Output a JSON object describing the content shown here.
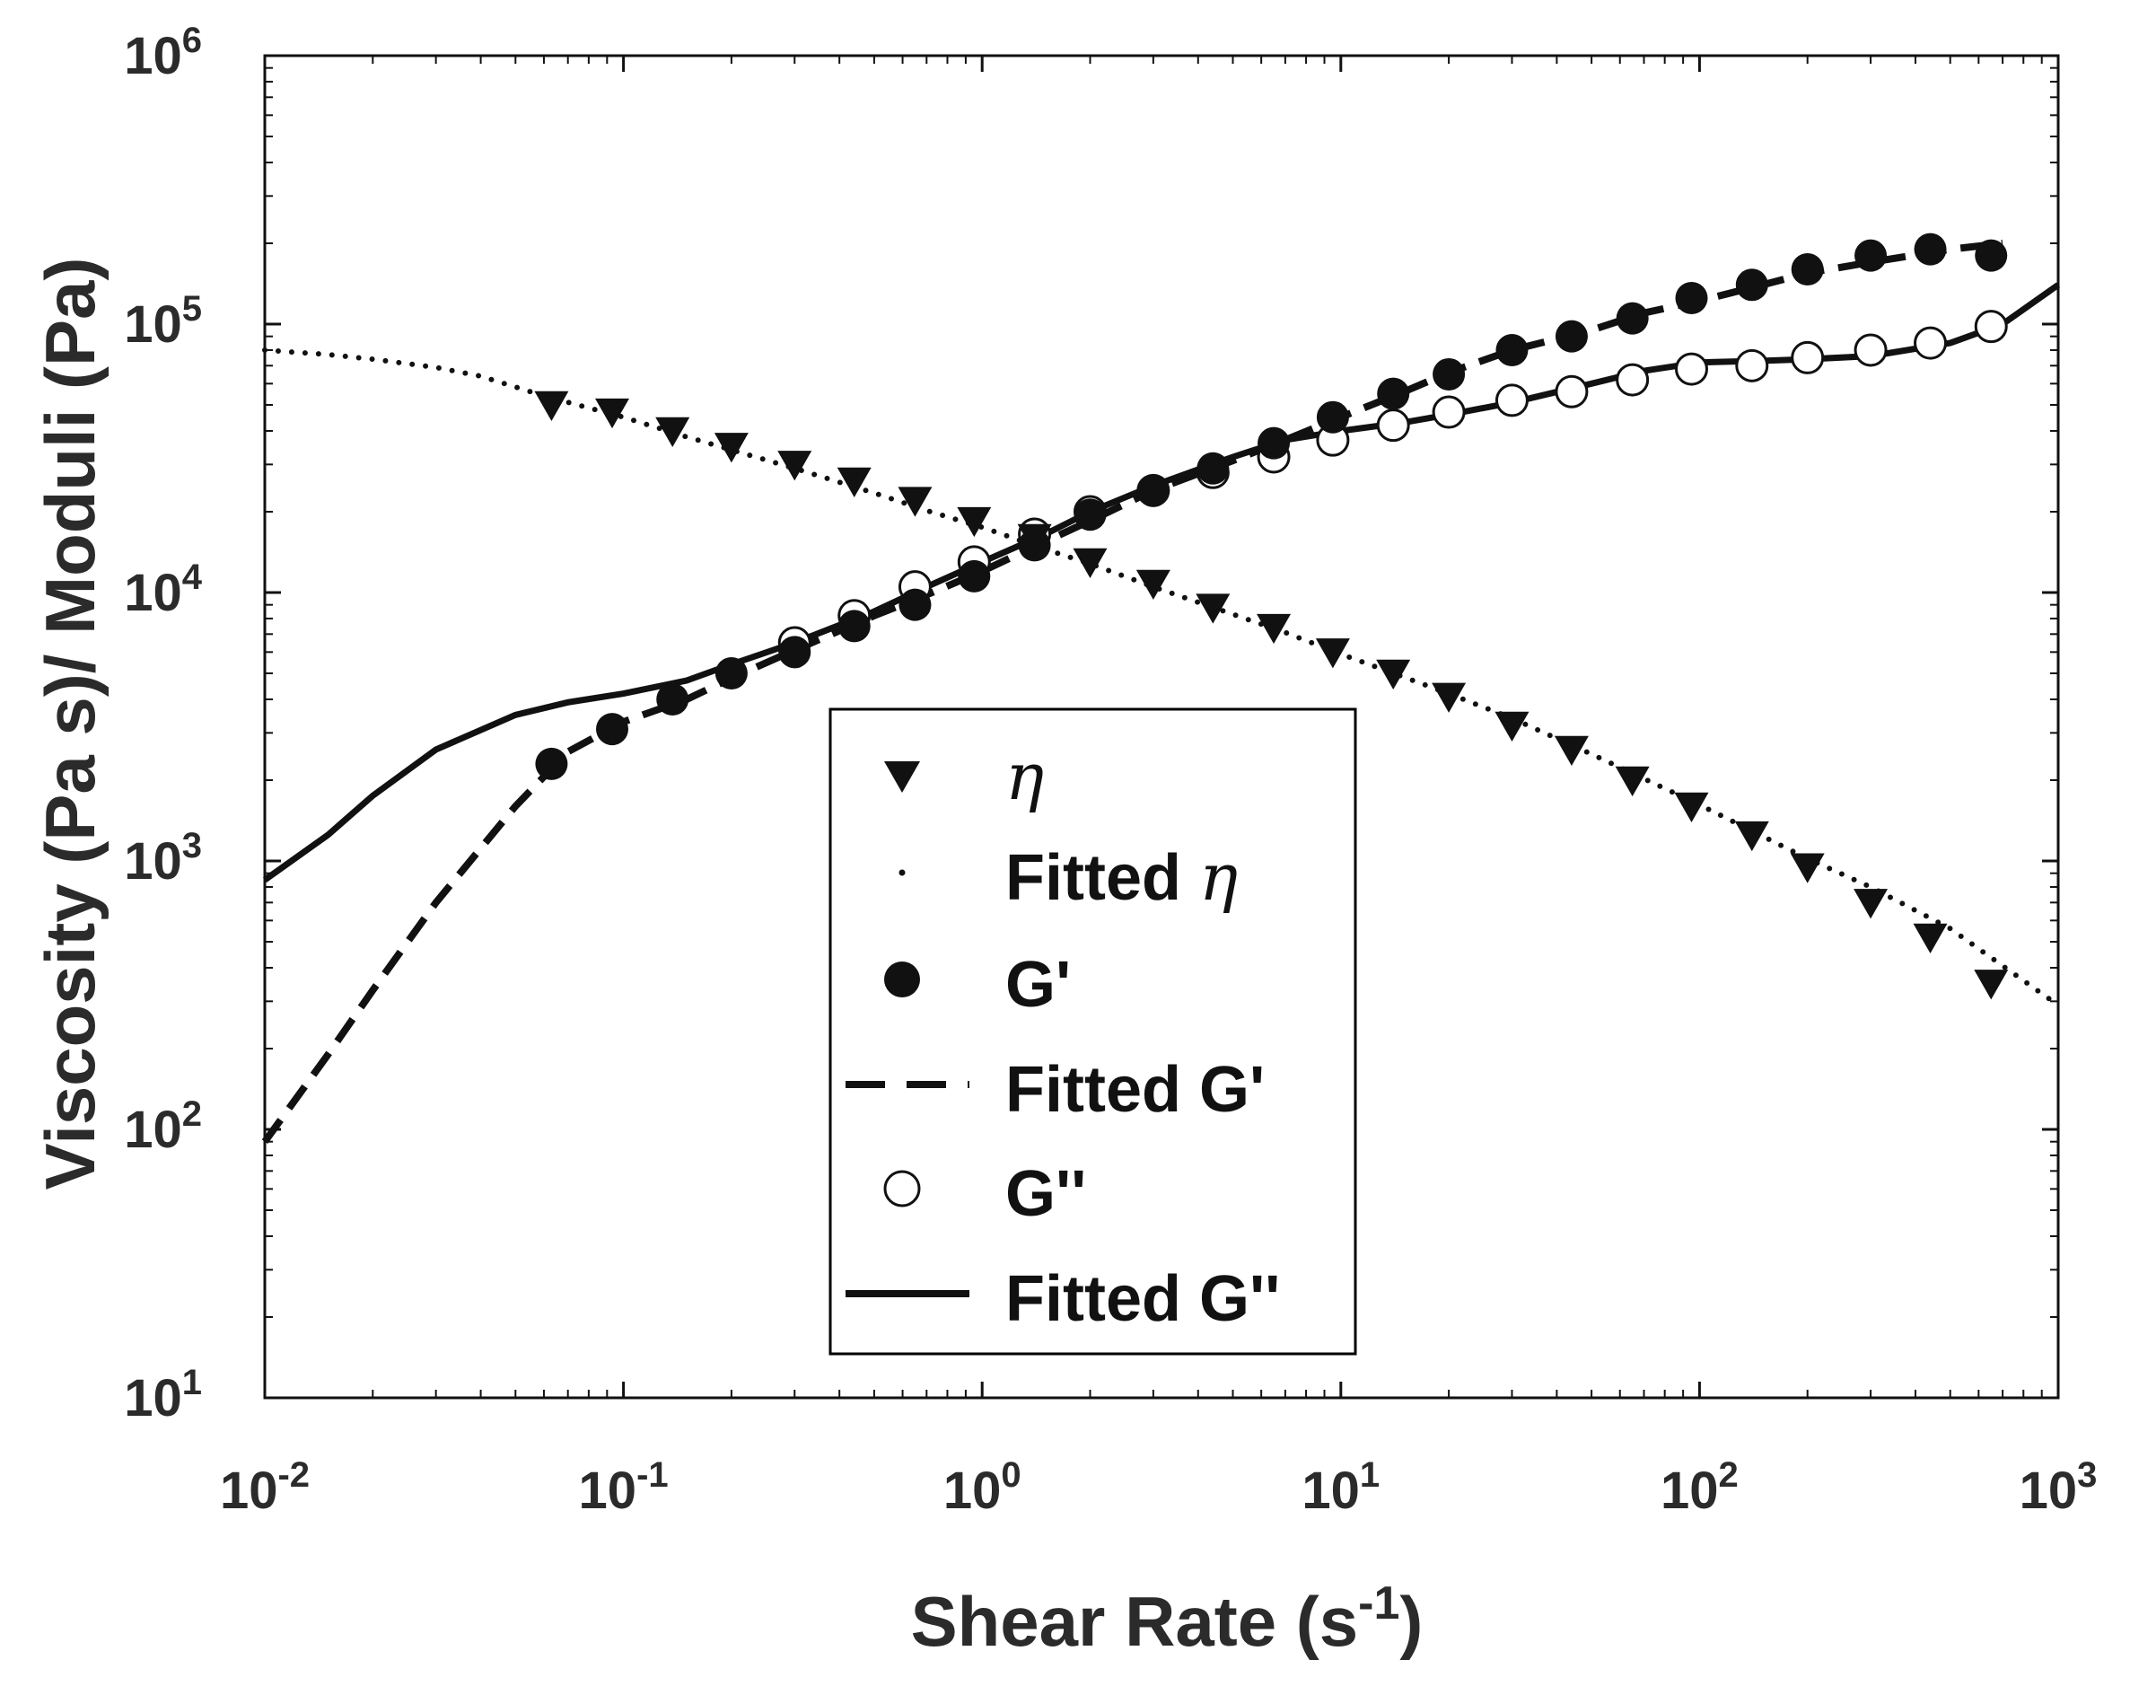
{
  "chart_data": {
    "type": "scatter",
    "scale": "log-log",
    "xlabel": "Shear Rate (s",
    "xlabel_sup": "-1",
    "xlabel_close": ")",
    "ylabel": "Viscosity (Pa s)/ Moduli (Pa)",
    "xlim": [
      0.01,
      1000
    ],
    "ylim": [
      10,
      1000000
    ],
    "x_ticks": [
      {
        "base": "10",
        "exp": "-2",
        "value": 0.01
      },
      {
        "base": "10",
        "exp": "-1",
        "value": 0.1
      },
      {
        "base": "10",
        "exp": "0",
        "value": 1
      },
      {
        "base": "10",
        "exp": "1",
        "value": 10
      },
      {
        "base": "10",
        "exp": "2",
        "value": 100
      },
      {
        "base": "10",
        "exp": "3",
        "value": 1000
      }
    ],
    "y_ticks": [
      {
        "base": "10",
        "exp": "1",
        "value": 10
      },
      {
        "base": "10",
        "exp": "2",
        "value": 100
      },
      {
        "base": "10",
        "exp": "3",
        "value": 1000
      },
      {
        "base": "10",
        "exp": "4",
        "value": 10000
      },
      {
        "base": "10",
        "exp": "5",
        "value": 100000
      },
      {
        "base": "10",
        "exp": "6",
        "value": 1000000
      }
    ],
    "legend_position": "center-bottom",
    "series": [
      {
        "name": "η",
        "label": "η",
        "math": true,
        "style": "marker-triangle-down-filled",
        "x": [
          0.063,
          0.093,
          0.137,
          0.2,
          0.3,
          0.44,
          0.65,
          0.95,
          1.4,
          2.0,
          3.0,
          4.4,
          6.5,
          9.5,
          14,
          20,
          30,
          44,
          65,
          95,
          140,
          200,
          300,
          440,
          650
        ],
        "y": [
          50000,
          47000,
          40000,
          35000,
          30000,
          26000,
          22000,
          18500,
          16000,
          13000,
          10800,
          8800,
          7400,
          6000,
          5000,
          4100,
          3200,
          2600,
          2000,
          1600,
          1250,
          950,
          700,
          520,
          350
        ]
      },
      {
        "name": "Fitted η",
        "label": "Fitted ",
        "label_math": "η",
        "style": "dotted-line",
        "x": [
          0.01,
          0.015,
          0.02,
          0.03,
          0.04,
          0.06,
          0.1,
          0.15,
          0.2,
          0.3,
          0.5,
          0.7,
          1,
          1.5,
          2,
          3,
          5,
          7,
          10,
          20,
          30,
          50,
          100,
          200,
          300,
          500,
          1000
        ],
        "y": [
          80000,
          77000,
          74000,
          69000,
          64000,
          54000,
          45000,
          38000,
          34000,
          29000,
          23500,
          20200,
          17500,
          14500,
          12800,
          10500,
          8300,
          7100,
          5900,
          4200,
          3400,
          2500,
          1620,
          1020,
          800,
          560,
          290
        ]
      },
      {
        "name": "G'",
        "label": "G'",
        "style": "marker-circle-filled",
        "x": [
          0.063,
          0.093,
          0.137,
          0.2,
          0.3,
          0.44,
          0.65,
          0.95,
          1.4,
          2.0,
          3.0,
          4.4,
          6.5,
          9.5,
          14,
          20,
          30,
          44,
          65,
          95,
          140,
          200,
          300,
          440,
          650
        ],
        "y": [
          2300,
          3100,
          4000,
          5000,
          6000,
          7500,
          9000,
          11500,
          15000,
          19500,
          24000,
          29000,
          36000,
          45000,
          55000,
          65000,
          80000,
          90000,
          105000,
          125000,
          140000,
          160000,
          180000,
          190000,
          180000
        ]
      },
      {
        "name": "Fitted G'",
        "label": "Fitted G'",
        "style": "dashed-line",
        "x": [
          0.01,
          0.015,
          0.02,
          0.03,
          0.05,
          0.07,
          0.1,
          0.15,
          0.2,
          0.3,
          0.5,
          0.7,
          1,
          1.5,
          2,
          3,
          5,
          7,
          10,
          15,
          20,
          30,
          50,
          70,
          100,
          150,
          200,
          300,
          500,
          700
        ],
        "y": [
          90,
          190,
          330,
          700,
          1600,
          2550,
          3300,
          4000,
          4800,
          6100,
          8200,
          9800,
          12000,
          15500,
          18500,
          24000,
          31000,
          37000,
          45000,
          56000,
          66000,
          80000,
          95000,
          110000,
          122000,
          140000,
          155000,
          170000,
          190000,
          200000
        ]
      },
      {
        "name": "G''",
        "label": "G''",
        "style": "marker-circle-open",
        "x": [
          0.3,
          0.44,
          0.65,
          0.95,
          1.4,
          2.0,
          3.0,
          4.4,
          6.5,
          9.5,
          14,
          20,
          30,
          44,
          65,
          95,
          140,
          200,
          300,
          440,
          650
        ],
        "y": [
          6500,
          8200,
          10500,
          13000,
          16500,
          20000,
          24000,
          28000,
          32000,
          37000,
          42000,
          47000,
          52000,
          56000,
          62000,
          68000,
          70000,
          75000,
          80000,
          85000,
          98000
        ]
      },
      {
        "name": "Fitted G''",
        "label": "Fitted G''",
        "style": "solid-line",
        "x": [
          0.01,
          0.015,
          0.02,
          0.03,
          0.05,
          0.07,
          0.1,
          0.15,
          0.2,
          0.3,
          0.5,
          0.7,
          1,
          1.5,
          2,
          3,
          5,
          7,
          10,
          15,
          20,
          30,
          50,
          70,
          100,
          150,
          200,
          300,
          500,
          700,
          1000
        ],
        "y": [
          850,
          1250,
          1750,
          2600,
          3500,
          3900,
          4200,
          4700,
          5400,
          6500,
          8500,
          10500,
          13000,
          16500,
          20000,
          25000,
          32000,
          37000,
          40000,
          43000,
          46000,
          51000,
          60000,
          67000,
          72000,
          73000,
          74000,
          76000,
          85000,
          100000,
          140000
        ]
      }
    ]
  }
}
